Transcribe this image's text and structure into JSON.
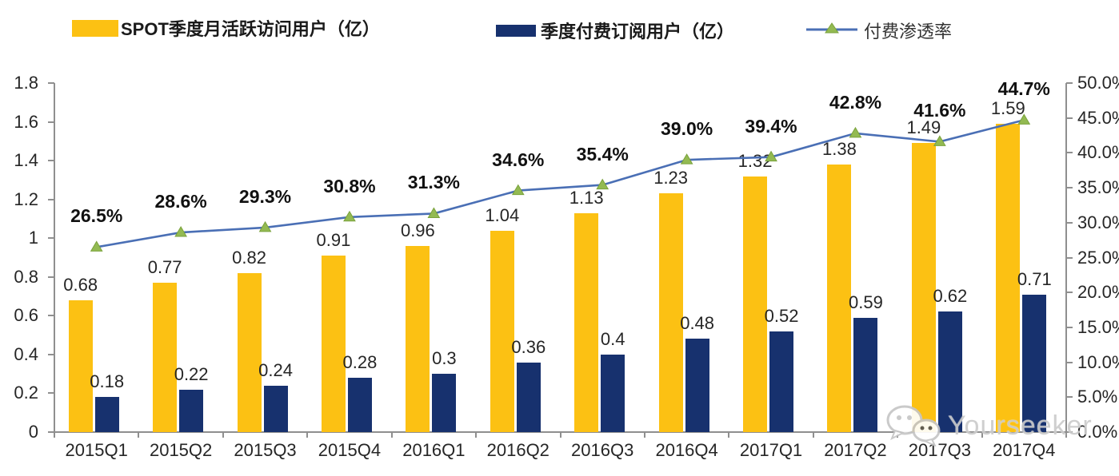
{
  "legend": {
    "items": [
      {
        "label": "SPOT季度月活跃访问用户（亿）"
      },
      {
        "label": "季度付费订阅用户（亿）"
      },
      {
        "label": "付费渗透率"
      }
    ]
  },
  "colors": {
    "mau_bar": "#FCC113",
    "subscriber_bar": "#17316E",
    "penetration_line": "#4A6FB5",
    "penetration_marker_fill": "#93BA52",
    "penetration_marker_stroke": "#7AA23C",
    "axis": "#8F8F8F",
    "text": "#262626",
    "watermark": "#CBCBCB"
  },
  "chart_data": {
    "type": "bar",
    "title": "",
    "categories": [
      "2015Q1",
      "2015Q2",
      "2015Q3",
      "2015Q4",
      "2016Q1",
      "2016Q2",
      "2016Q3",
      "2016Q4",
      "2017Q1",
      "2017Q2",
      "2017Q3",
      "2017Q4"
    ],
    "series": [
      {
        "name": "SPOT季度月活跃访问用户（亿）",
        "type": "bar",
        "axis": "left",
        "values": [
          0.68,
          0.77,
          0.82,
          0.91,
          0.96,
          1.04,
          1.13,
          1.23,
          1.32,
          1.38,
          1.49,
          1.59
        ],
        "labels": [
          "0.68",
          "0.77",
          "0.82",
          "0.91",
          "0.96",
          "1.04",
          "1.13",
          "1.23",
          "1.32",
          "1.38",
          "1.49",
          "1.59"
        ]
      },
      {
        "name": "季度付费订阅用户（亿）",
        "type": "bar",
        "axis": "left",
        "values": [
          0.18,
          0.22,
          0.24,
          0.28,
          0.3,
          0.36,
          0.4,
          0.48,
          0.52,
          0.59,
          0.62,
          0.71
        ],
        "labels": [
          "0.18",
          "0.22",
          "0.24",
          "0.28",
          "0.3",
          "0.36",
          "0.4",
          "0.48",
          "0.52",
          "0.59",
          "0.62",
          "0.71"
        ]
      },
      {
        "name": "付费渗透率",
        "type": "line",
        "axis": "right",
        "marker": "triangle",
        "values": [
          26.5,
          28.6,
          29.3,
          30.8,
          31.3,
          34.6,
          35.4,
          39.0,
          39.4,
          42.8,
          41.6,
          44.7
        ],
        "labels": [
          "26.5%",
          "28.6%",
          "29.3%",
          "30.8%",
          "31.3%",
          "34.6%",
          "35.4%",
          "39.0%",
          "39.4%",
          "42.8%",
          "41.6%",
          "44.7%"
        ]
      }
    ],
    "left_axis": {
      "min": 0,
      "max": 1.8,
      "step": 0.2,
      "tick_labels": [
        "1.8",
        "1.6",
        "1.4",
        "1.2",
        "1",
        "0.8",
        "0.6",
        "0.4",
        "0.2",
        "0"
      ]
    },
    "right_axis": {
      "min": 0,
      "max": 50,
      "step": 5,
      "tick_labels": [
        "50.0%",
        "45.0%",
        "40.0%",
        "35.0%",
        "30.0%",
        "25.0%",
        "20.0%",
        "15.0%",
        "10.0%",
        "5.0%",
        "0.0%"
      ]
    },
    "grid": false,
    "legend_position": "top"
  },
  "watermark": {
    "text": "Yourseeker",
    "icon": "wechat-chat-bubbles-icon"
  }
}
